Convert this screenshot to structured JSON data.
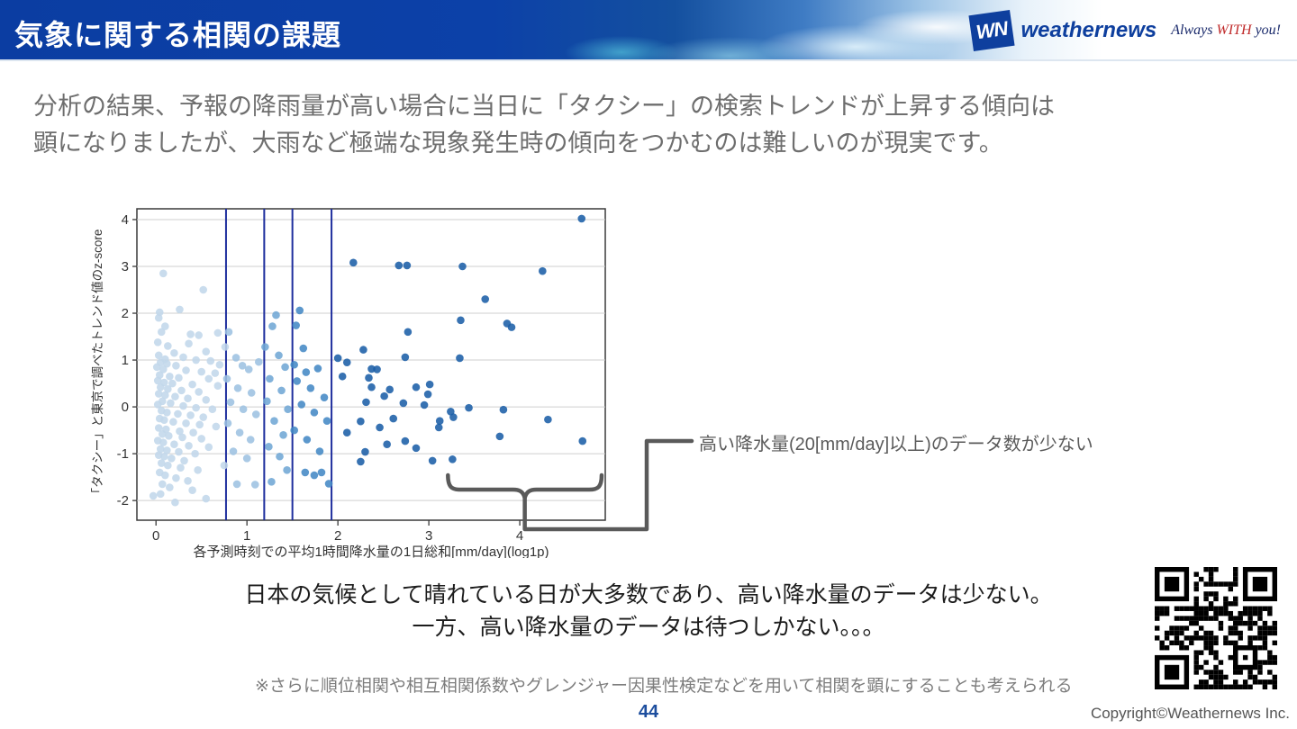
{
  "header": {
    "title": "気象に関する相関の課題"
  },
  "logo": {
    "mark": "WN",
    "brand": "weathernews",
    "tagline_pre": "Always ",
    "tagline_with": "WITH",
    "tagline_post": " you!"
  },
  "intro": {
    "line1": "分析の結果、予報の降雨量が高い場合に当日に「タクシー」の検索トレンドが上昇する傾向は",
    "line2": "顕になりましたが、大雨など極端な現象発生時の傾向をつかむのは難しいのが現実です。"
  },
  "annotation": {
    "label": "高い降水量(20[mm/day]以上)のデータ数が少ない"
  },
  "conclusion": {
    "line1": "日本の気候として晴れている日が大多数であり、高い降水量のデータは少ない。",
    "line2": "一方、高い降水量のデータは待つしかない。。。"
  },
  "note": {
    "text": "※さらに順位相関や相互相関係数やグレンジャー因果性検定などを用いて相関を顕にすることも考えられる"
  },
  "footer": {
    "page": "44",
    "copyright": "Copyright©Weathernews Inc."
  },
  "chart_data": {
    "type": "scatter",
    "title": "",
    "xlabel": "各予測時刻での平均1時間降水量の1日総和[mm/day](log1p)",
    "ylabel": "「タクシー」と東京で調べたトレンド値のz-score",
    "xlim": [
      -0.21,
      4.94
    ],
    "ylim": [
      -2.42,
      4.23
    ],
    "xticks": [
      0,
      1,
      2,
      3,
      4
    ],
    "yticks": [
      -2,
      -1,
      0,
      1,
      2,
      3,
      4
    ],
    "grid": "horizontal-only",
    "gridline_color": "#cfcfcf",
    "frame_color": "#3a3a3a",
    "vlines": {
      "x": [
        0.77,
        1.19,
        1.5,
        1.93
      ],
      "color": "#1f2f9e"
    },
    "point_colors_by_bin": [
      "#c2d7eb",
      "#9dc2e1",
      "#71a7d5",
      "#4489c5",
      "#1b5ea7"
    ],
    "brace": {
      "x0": 3.21,
      "x1": 4.9,
      "y": -1.69,
      "color": "#5a5a5a",
      "meaning": "region of high precipitation with few data points"
    },
    "points": [
      [
        0.08,
        2.85
      ],
      [
        0.52,
        2.5
      ],
      [
        0.26,
        2.08
      ],
      [
        0.04,
        2.02
      ],
      [
        0.03,
        1.9
      ],
      [
        0.1,
        1.72
      ],
      [
        0.06,
        1.6
      ],
      [
        0.38,
        1.55
      ],
      [
        0.47,
        1.53
      ],
      [
        0.68,
        1.58
      ],
      [
        0.02,
        1.38
      ],
      [
        0.36,
        1.35
      ],
      [
        0.13,
        1.3
      ],
      [
        0.55,
        1.18
      ],
      [
        0.2,
        1.15
      ],
      [
        0.03,
        1.1
      ],
      [
        0.3,
        1.06
      ],
      [
        0.1,
        1.02
      ],
      [
        0.44,
        1.0
      ],
      [
        0.6,
        0.98
      ],
      [
        0.05,
        0.95
      ],
      [
        0.12,
        0.92
      ],
      [
        0.7,
        0.9
      ],
      [
        0.22,
        0.88
      ],
      [
        0.01,
        0.85
      ],
      [
        0.08,
        0.8
      ],
      [
        0.33,
        0.78
      ],
      [
        0.5,
        0.75
      ],
      [
        0.65,
        0.72
      ],
      [
        0.04,
        0.68
      ],
      [
        0.15,
        0.65
      ],
      [
        0.25,
        0.62
      ],
      [
        0.58,
        0.6
      ],
      [
        0.02,
        0.56
      ],
      [
        0.09,
        0.52
      ],
      [
        0.18,
        0.5
      ],
      [
        0.4,
        0.48
      ],
      [
        0.68,
        0.45
      ],
      [
        0.05,
        0.42
      ],
      [
        0.13,
        0.38
      ],
      [
        0.28,
        0.35
      ],
      [
        0.47,
        0.32
      ],
      [
        0.03,
        0.28
      ],
      [
        0.1,
        0.25
      ],
      [
        0.21,
        0.22
      ],
      [
        0.35,
        0.18
      ],
      [
        0.55,
        0.15
      ],
      [
        0.07,
        0.12
      ],
      [
        0.16,
        0.08
      ],
      [
        0.02,
        0.05
      ],
      [
        0.3,
        0.02
      ],
      [
        0.44,
        -0.02
      ],
      [
        0.62,
        -0.05
      ],
      [
        0.06,
        -0.08
      ],
      [
        0.12,
        -0.12
      ],
      [
        0.24,
        -0.15
      ],
      [
        0.38,
        -0.18
      ],
      [
        0.52,
        -0.22
      ],
      [
        0.04,
        -0.25
      ],
      [
        0.09,
        -0.28
      ],
      [
        0.19,
        -0.32
      ],
      [
        0.33,
        -0.35
      ],
      [
        0.48,
        -0.38
      ],
      [
        0.66,
        -0.42
      ],
      [
        0.03,
        -0.45
      ],
      [
        0.11,
        -0.48
      ],
      [
        0.26,
        -0.52
      ],
      [
        0.41,
        -0.55
      ],
      [
        0.07,
        -0.58
      ],
      [
        0.14,
        -0.62
      ],
      [
        0.29,
        -0.65
      ],
      [
        0.5,
        -0.68
      ],
      [
        0.02,
        -0.72
      ],
      [
        0.08,
        -0.76
      ],
      [
        0.2,
        -0.8
      ],
      [
        0.36,
        -0.83
      ],
      [
        0.58,
        -0.86
      ],
      [
        0.05,
        -0.9
      ],
      [
        0.12,
        -0.93
      ],
      [
        0.25,
        -0.96
      ],
      [
        0.43,
        -1.0
      ],
      [
        0.03,
        -1.03
      ],
      [
        0.09,
        -1.06
      ],
      [
        0.17,
        -1.1
      ],
      [
        0.31,
        -1.15
      ],
      [
        0.06,
        -1.2
      ],
      [
        0.13,
        -1.25
      ],
      [
        0.27,
        -1.3
      ],
      [
        0.46,
        -1.35
      ],
      [
        0.04,
        -1.4
      ],
      [
        0.1,
        -1.46
      ],
      [
        0.22,
        -1.52
      ],
      [
        0.35,
        -1.58
      ],
      [
        0.07,
        -1.65
      ],
      [
        0.15,
        -1.72
      ],
      [
        0.4,
        -1.78
      ],
      [
        0.05,
        -1.86
      ],
      [
        -0.03,
        -1.9
      ],
      [
        0.21,
        -2.04
      ],
      [
        0.55,
        -1.96
      ],
      [
        0.8,
        1.6
      ],
      [
        0.76,
        1.28
      ],
      [
        0.88,
        1.05
      ],
      [
        1.13,
        0.96
      ],
      [
        0.95,
        0.88
      ],
      [
        1.02,
        0.8
      ],
      [
        0.78,
        0.6
      ],
      [
        0.9,
        0.4
      ],
      [
        1.05,
        0.3
      ],
      [
        0.82,
        0.1
      ],
      [
        0.96,
        -0.05
      ],
      [
        1.1,
        -0.16
      ],
      [
        0.79,
        -0.35
      ],
      [
        0.92,
        -0.55
      ],
      [
        1.04,
        -0.7
      ],
      [
        0.85,
        -0.95
      ],
      [
        1.0,
        -1.1
      ],
      [
        0.75,
        -1.25
      ],
      [
        0.89,
        -1.65
      ],
      [
        1.09,
        -1.66
      ],
      [
        1.32,
        1.96
      ],
      [
        1.28,
        1.72
      ],
      [
        1.2,
        1.28
      ],
      [
        1.35,
        1.1
      ],
      [
        1.42,
        0.85
      ],
      [
        1.25,
        0.6
      ],
      [
        1.38,
        0.35
      ],
      [
        1.22,
        0.12
      ],
      [
        1.45,
        -0.05
      ],
      [
        1.3,
        -0.3
      ],
      [
        1.4,
        -0.6
      ],
      [
        1.24,
        -0.85
      ],
      [
        1.36,
        -1.06
      ],
      [
        1.44,
        -1.35
      ],
      [
        1.27,
        -1.6
      ],
      [
        1.58,
        2.06
      ],
      [
        1.54,
        1.74
      ],
      [
        1.62,
        1.25
      ],
      [
        1.52,
        0.9
      ],
      [
        1.78,
        0.82
      ],
      [
        1.65,
        0.74
      ],
      [
        1.55,
        0.55
      ],
      [
        1.7,
        0.4
      ],
      [
        1.85,
        0.2
      ],
      [
        1.6,
        0.05
      ],
      [
        1.74,
        -0.12
      ],
      [
        1.88,
        -0.3
      ],
      [
        1.52,
        -0.5
      ],
      [
        1.66,
        -0.7
      ],
      [
        1.8,
        -0.95
      ],
      [
        1.64,
        -1.4
      ],
      [
        1.74,
        -1.46
      ],
      [
        1.82,
        -1.4
      ],
      [
        1.9,
        -1.64
      ],
      [
        4.68,
        4.02
      ],
      [
        2.17,
        3.08
      ],
      [
        2.67,
        3.02
      ],
      [
        2.76,
        3.02
      ],
      [
        3.37,
        3.0
      ],
      [
        4.25,
        2.9
      ],
      [
        3.62,
        2.3
      ],
      [
        3.35,
        1.85
      ],
      [
        3.86,
        1.78
      ],
      [
        3.91,
        1.7
      ],
      [
        2.77,
        1.6
      ],
      [
        2.28,
        1.22
      ],
      [
        3.34,
        1.04
      ],
      [
        2.74,
        1.06
      ],
      [
        2.0,
        1.04
      ],
      [
        2.1,
        0.95
      ],
      [
        2.37,
        0.81
      ],
      [
        2.43,
        0.8
      ],
      [
        2.34,
        0.62
      ],
      [
        3.01,
        0.48
      ],
      [
        2.86,
        0.42
      ],
      [
        2.37,
        0.42
      ],
      [
        2.57,
        0.37
      ],
      [
        2.99,
        0.27
      ],
      [
        2.51,
        0.23
      ],
      [
        2.05,
        0.65
      ],
      [
        2.72,
        0.08
      ],
      [
        2.31,
        0.1
      ],
      [
        2.95,
        0.04
      ],
      [
        3.44,
        -0.02
      ],
      [
        3.82,
        -0.06
      ],
      [
        3.24,
        -0.1
      ],
      [
        3.27,
        -0.22
      ],
      [
        3.12,
        -0.3
      ],
      [
        3.11,
        -0.44
      ],
      [
        2.25,
        -0.31
      ],
      [
        2.46,
        -0.44
      ],
      [
        2.61,
        -0.25
      ],
      [
        2.1,
        -0.55
      ],
      [
        4.31,
        -0.27
      ],
      [
        3.78,
        -0.63
      ],
      [
        4.69,
        -0.73
      ],
      [
        2.74,
        -0.73
      ],
      [
        2.54,
        -0.8
      ],
      [
        2.86,
        -0.88
      ],
      [
        2.3,
        -0.96
      ],
      [
        3.04,
        -1.15
      ],
      [
        3.26,
        -1.12
      ],
      [
        2.25,
        -1.17
      ]
    ]
  }
}
